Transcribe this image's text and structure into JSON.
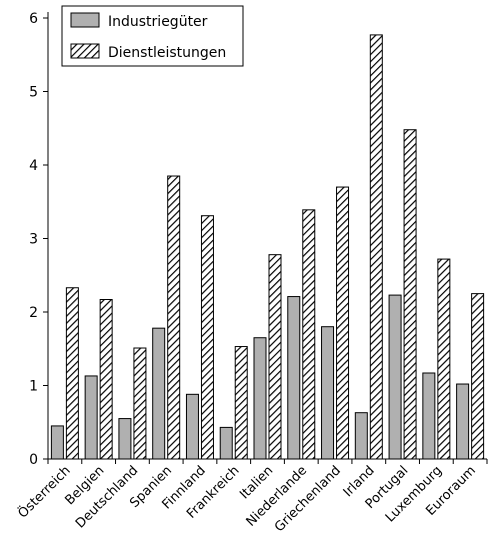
{
  "chart_data": {
    "type": "bar",
    "title": "",
    "xlabel": "",
    "ylabel": "",
    "ylim": [
      0,
      6
    ],
    "yticks": [
      0,
      1,
      2,
      3,
      4,
      5,
      6
    ],
    "grid": false,
    "legend_position": "top-left",
    "categories": [
      "Österreich",
      "Belgien",
      "Deutschland",
      "Spanien",
      "Finnland",
      "Frankreich",
      "Italien",
      "Niederlande",
      "Griechenland",
      "Irland",
      "Portugal",
      "Luxemburg",
      "Euroraum"
    ],
    "series": [
      {
        "name": "Industriegüter",
        "fill": "solid",
        "color": "#b0b0b0",
        "values": [
          0.45,
          1.13,
          0.55,
          1.78,
          0.88,
          0.43,
          1.65,
          2.21,
          1.8,
          0.63,
          2.23,
          1.17,
          1.02
        ]
      },
      {
        "name": "Dienstleistungen",
        "fill": "hatched",
        "color": "#ffffff",
        "values": [
          2.33,
          2.17,
          1.51,
          3.85,
          3.31,
          1.53,
          2.78,
          3.39,
          3.7,
          5.77,
          4.48,
          2.72,
          2.25
        ]
      }
    ]
  }
}
